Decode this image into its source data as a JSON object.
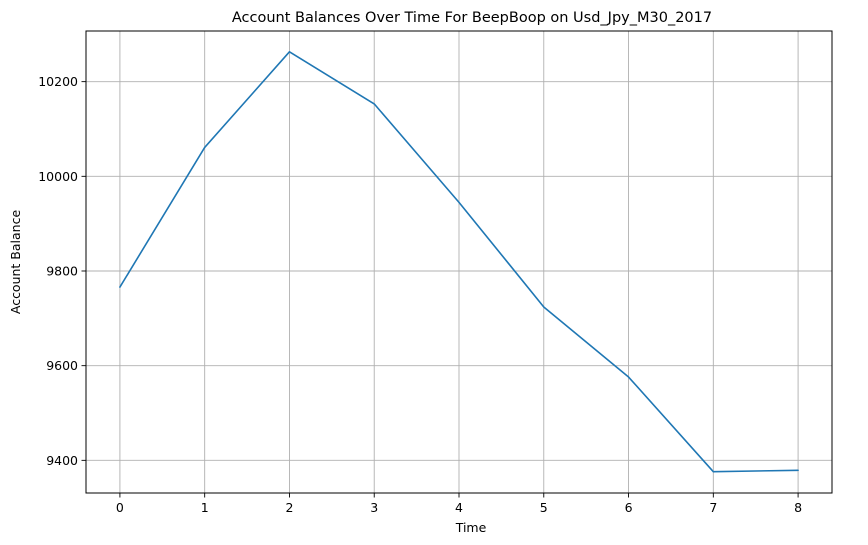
{
  "chart_data": {
    "type": "line",
    "title": "Account Balances Over Time For BeepBoop on Usd_Jpy_M30_2017",
    "xlabel": "Time",
    "ylabel": "Account Balance",
    "x": [
      0,
      1,
      2,
      3,
      4,
      5,
      6,
      7,
      8
    ],
    "series": [
      {
        "values": [
          9766,
          10061,
          10263,
          10153,
          9945,
          9724,
          9576,
          9376,
          9379
        ],
        "color": "#1f77b4"
      }
    ],
    "xlim": [
      -0.4,
      8.4
    ],
    "ylim": [
      9331,
      10307
    ],
    "xticks": [
      0,
      1,
      2,
      3,
      4,
      5,
      6,
      7,
      8
    ],
    "yticks": [
      9400,
      9600,
      9800,
      10000,
      10200
    ],
    "grid": true,
    "legend": "none"
  }
}
